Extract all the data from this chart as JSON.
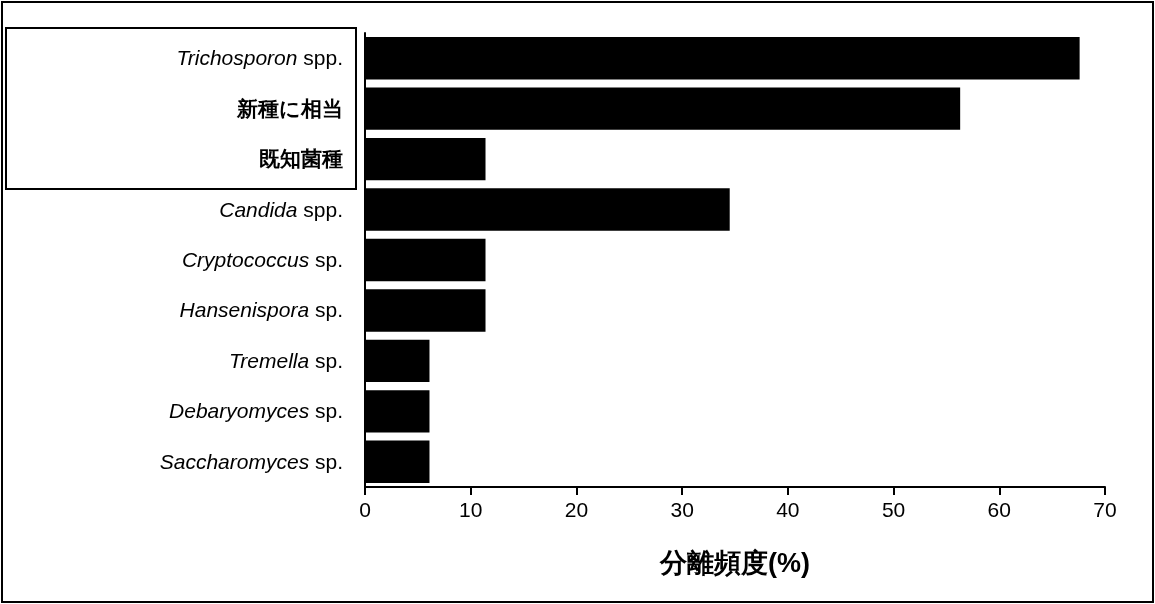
{
  "chart_data": {
    "type": "bar",
    "orientation": "horizontal",
    "categories": [
      "Trichosporon spp.",
      "新種に相当",
      "既知菌種",
      "Candida spp.",
      "Cryptococcus sp.",
      "Hansenispora sp.",
      "Tremella sp.",
      "Debaryomyces sp.",
      "Saccharomyces sp."
    ],
    "values": [
      67.6,
      56.3,
      11.4,
      34.5,
      11.4,
      11.4,
      6.1,
      6.1,
      6.1
    ],
    "color": "#000000",
    "xlabel": "分離頻度(%)",
    "xlim": [
      0,
      70
    ],
    "xticks": [
      0,
      10,
      20,
      30,
      40,
      50,
      60,
      70
    ],
    "grid": false
  }
}
